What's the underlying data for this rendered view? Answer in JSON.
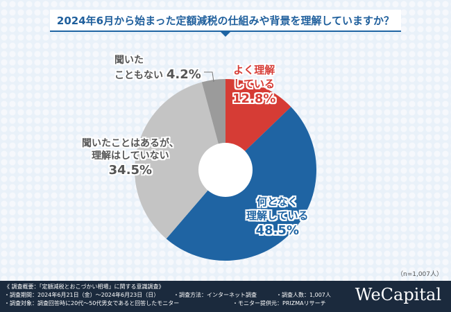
{
  "title": "2024年6月から始まった定額減税の仕組みや背景を理解していますか？",
  "chart_data": {
    "type": "pie",
    "donut": true,
    "title": "2024年6月から始まった定額減税の仕組みや背景を理解していますか？",
    "start": "top, clockwise",
    "slices": [
      {
        "label": "よく理解している",
        "value": 12.8,
        "display": "12.8%",
        "color": "#d63c35"
      },
      {
        "label": "何となく理解している",
        "value": 48.5,
        "display": "48.5%",
        "color": "#1f64a3"
      },
      {
        "label": "聞いたことはあるが、理解はしていない",
        "value": 34.5,
        "display": "34.5%",
        "color": "#c4c4c4"
      },
      {
        "label": "聞いたこともない",
        "value": 4.2,
        "display": "4.2%",
        "color": "#9b9b9b"
      }
    ],
    "note": "（n=1,007人）"
  },
  "labels": {
    "l0a": "よく理解",
    "l0b": "している",
    "l1a": "何となく",
    "l1b": "理解している",
    "l2a": "聞いたことはあるが、",
    "l2b": "理解はしていない",
    "l3a": "聞いた",
    "l3b": "こともない"
  },
  "footer": {
    "line1": "《 調査概要：「定額減税とおこづかい相場」に関する意識調査》",
    "period": "・調査期間：2024年6月21日（金）～2024年6月23日（日）",
    "method": "・調査方法：インターネット調査",
    "count": "・調査人数：1,007人",
    "target": "・調査対象：調査回答時に20代～50代男女であると回答したモニター",
    "provider": "・モニター提供元：PRIZMAリサーチ",
    "logo": "WeCapital"
  }
}
